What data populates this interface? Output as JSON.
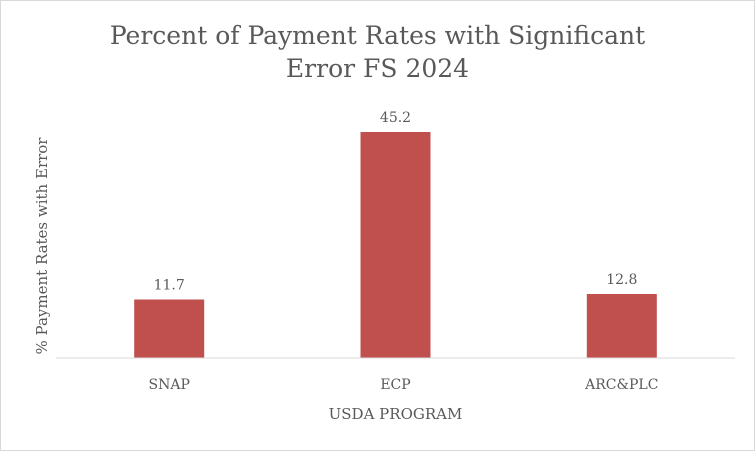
{
  "chart_data": {
    "type": "bar",
    "title": "Percent of Payment Rates with Significant\nError FS 2024",
    "xlabel": "USDA PROGRAM",
    "ylabel": "% Payment Rates with Error",
    "categories": [
      "SNAP",
      "ECP",
      "ARC&PLC"
    ],
    "values": [
      11.7,
      45.2,
      12.8
    ],
    "data_labels": [
      "11.7",
      "45.2",
      "12.8"
    ],
    "ylim": [
      0,
      50
    ],
    "grid": false,
    "legend": "none",
    "bar_color": "#c0504d",
    "axis_color": "#d9d9d9",
    "text_color": "#595959"
  }
}
